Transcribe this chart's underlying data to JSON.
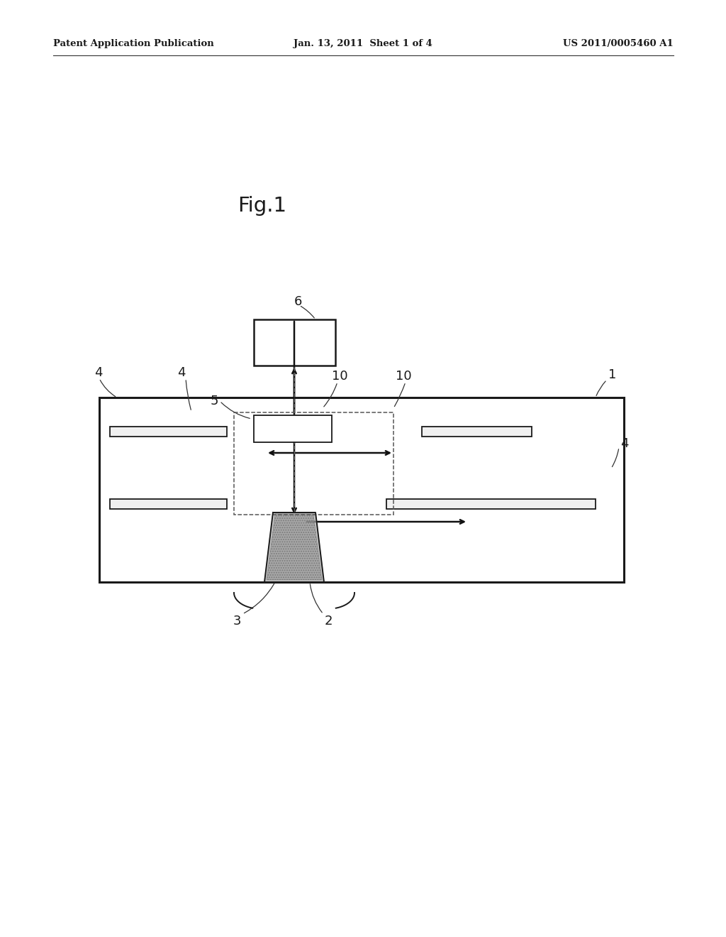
{
  "background_color": "#ffffff",
  "header_left": "Patent Application Publication",
  "header_mid": "Jan. 13, 2011  Sheet 1 of 4",
  "header_right": "US 2011/0005460 A1",
  "fig_label": "Fig.1"
}
